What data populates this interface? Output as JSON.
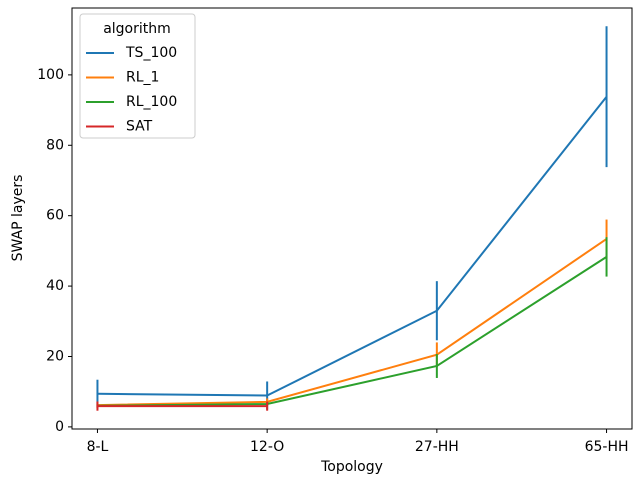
{
  "chart_data": {
    "type": "line",
    "xlabel": "Topology",
    "ylabel": "SWAP layers",
    "categories": [
      "8-L",
      "12-O",
      "27-HH",
      "65-HH"
    ],
    "legend_title": "algorithm",
    "legend": "upper left",
    "ylim": [
      -0.6,
      119
    ],
    "yticks": [
      0,
      20,
      40,
      60,
      80,
      100
    ],
    "series": [
      {
        "name": "TS_100",
        "color": "#1f77b4",
        "values": [
          9.4,
          8.9,
          33,
          93.8
        ],
        "errors": [
          4,
          4,
          8.4,
          20
        ]
      },
      {
        "name": "RL_1",
        "color": "#ff7f0e",
        "values": [
          6.2,
          7.1,
          20.5,
          53.4
        ],
        "errors": [
          1,
          1,
          3.5,
          5.5
        ]
      },
      {
        "name": "RL_100",
        "color": "#2ca02c",
        "values": [
          6.0,
          6.5,
          17.3,
          48.3
        ],
        "errors": [
          0.5,
          0.5,
          3.4,
          5.6
        ]
      },
      {
        "name": "SAT",
        "color": "#d62728",
        "values": [
          5.9,
          5.9,
          null,
          null
        ],
        "errors": [
          1.3,
          1.3,
          null,
          null
        ]
      }
    ]
  }
}
